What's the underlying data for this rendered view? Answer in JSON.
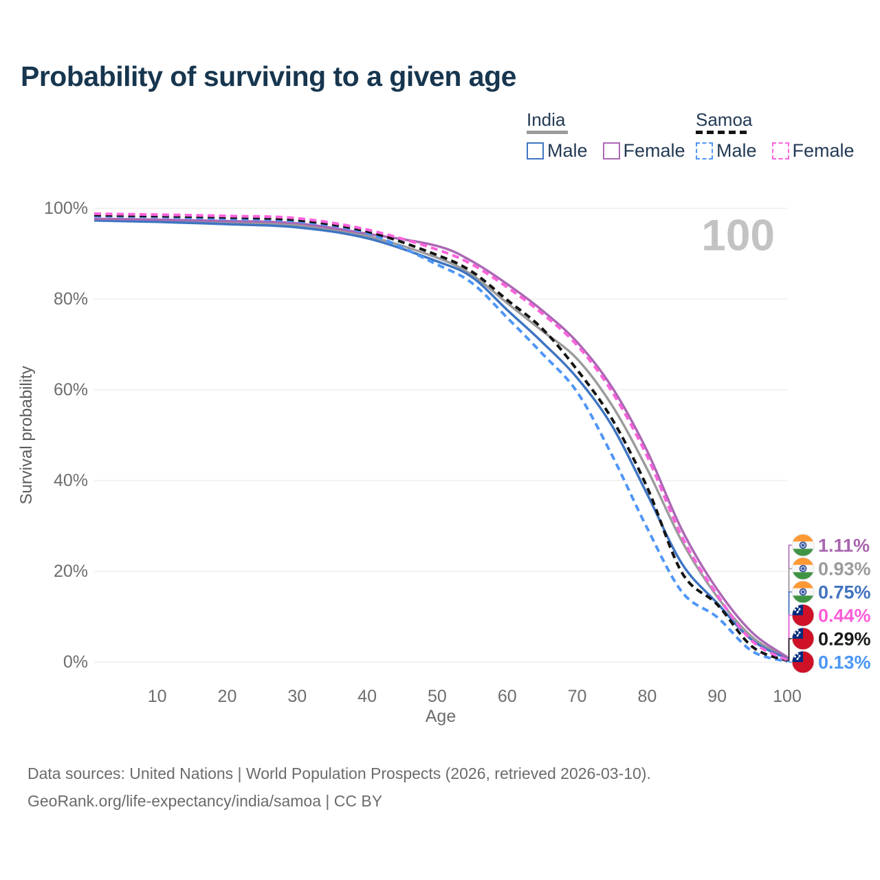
{
  "title": "Probability of surviving to a given age",
  "watermark": "100",
  "legend": {
    "groups": [
      {
        "label": "India",
        "items": [
          {
            "label": "Male"
          },
          {
            "label": "Female"
          }
        ]
      },
      {
        "label": "Samoa",
        "items": [
          {
            "label": "Male"
          },
          {
            "label": "Female"
          }
        ]
      }
    ]
  },
  "chart_data": {
    "type": "line",
    "title": "Probability of surviving to a given age",
    "xlabel": "Age",
    "ylabel": "Survival probability",
    "xlim": [
      1,
      100
    ],
    "ylim": [
      0,
      100
    ],
    "grid": "horizontal",
    "legend_position": "top-right",
    "xticks": [
      10,
      20,
      30,
      40,
      50,
      60,
      70,
      80,
      90,
      100
    ],
    "yticks": [
      0,
      20,
      40,
      60,
      80,
      100
    ],
    "ytick_suffix": "%",
    "ages": [
      1,
      10,
      20,
      30,
      40,
      50,
      55,
      60,
      65,
      70,
      75,
      80,
      85,
      90,
      95,
      100
    ],
    "series": [
      {
        "name": "India Female",
        "country": "india",
        "sex": "female",
        "style": "solid",
        "color": "#ab68b4",
        "end_label": "1.11%",
        "values": [
          97.7,
          97.5,
          97.2,
          96.7,
          94.4,
          91.7,
          88.3,
          83.3,
          77.5,
          70.5,
          60.5,
          46.5,
          29.0,
          16.0,
          6.5,
          1.11
        ]
      },
      {
        "name": "India",
        "country": "india",
        "sex": "both",
        "style": "solid",
        "color": "#9b9b9b",
        "end_label": "0.93%",
        "values": [
          97.5,
          97.2,
          96.8,
          96.2,
          93.9,
          89.1,
          85.3,
          79.1,
          73.0,
          66.8,
          56.5,
          42.5,
          26.5,
          14.4,
          5.5,
          0.93
        ]
      },
      {
        "name": "India Male",
        "country": "india",
        "sex": "male",
        "style": "solid",
        "color": "#3e75c2",
        "end_label": "0.75%",
        "values": [
          97.3,
          97.0,
          96.5,
          95.8,
          93.4,
          88.3,
          84.8,
          77.6,
          70.5,
          62.6,
          52.0,
          37.0,
          21.6,
          13.0,
          4.8,
          0.75
        ]
      },
      {
        "name": "Samoa Female",
        "country": "samoa",
        "sex": "female",
        "style": "dashed",
        "color": "#fb63dc",
        "end_label": "0.44%",
        "values": [
          98.8,
          98.6,
          98.3,
          97.8,
          95.3,
          90.9,
          87.6,
          82.6,
          76.8,
          69.8,
          59.5,
          45.3,
          27.5,
          14.8,
          4.6,
          0.44
        ]
      },
      {
        "name": "Samoa",
        "country": "samoa",
        "sex": "both",
        "style": "dashed",
        "color": "#141414",
        "end_label": "0.29%",
        "values": [
          98.5,
          98.3,
          98.0,
          97.4,
          94.9,
          89.7,
          86.0,
          79.8,
          73.5,
          64.4,
          53.5,
          38.5,
          19.6,
          12.7,
          3.4,
          0.29
        ]
      },
      {
        "name": "Samoa Male",
        "country": "samoa",
        "sex": "male",
        "style": "dashed",
        "color": "#4f96f7",
        "end_label": "0.13%",
        "values": [
          98.3,
          98.1,
          97.7,
          97.1,
          94.5,
          87.6,
          83.5,
          75.9,
          68.0,
          59.5,
          45.5,
          29.5,
          15.4,
          9.9,
          2.4,
          0.13
        ]
      }
    ],
    "end_labels": [
      {
        "flag": "india",
        "text": "1.11%",
        "color": "#a964ae"
      },
      {
        "flag": "india",
        "text": "0.93%",
        "color": "#9b9b9b"
      },
      {
        "flag": "india",
        "text": "0.75%",
        "color": "#4273bd"
      },
      {
        "flag": "samoa",
        "text": "0.44%",
        "color": "#fc5ed9"
      },
      {
        "flag": "samoa",
        "text": "0.29%",
        "color": "#1a1a1a"
      },
      {
        "flag": "samoa",
        "text": "0.13%",
        "color": "#4b96f7"
      }
    ]
  },
  "footer": {
    "line1": "Data sources: United Nations | World Population Prospects (2026, retrieved 2026-03-10).",
    "line2": "GeoRank.org/life-expectancy/india/samoa | CC BY"
  }
}
